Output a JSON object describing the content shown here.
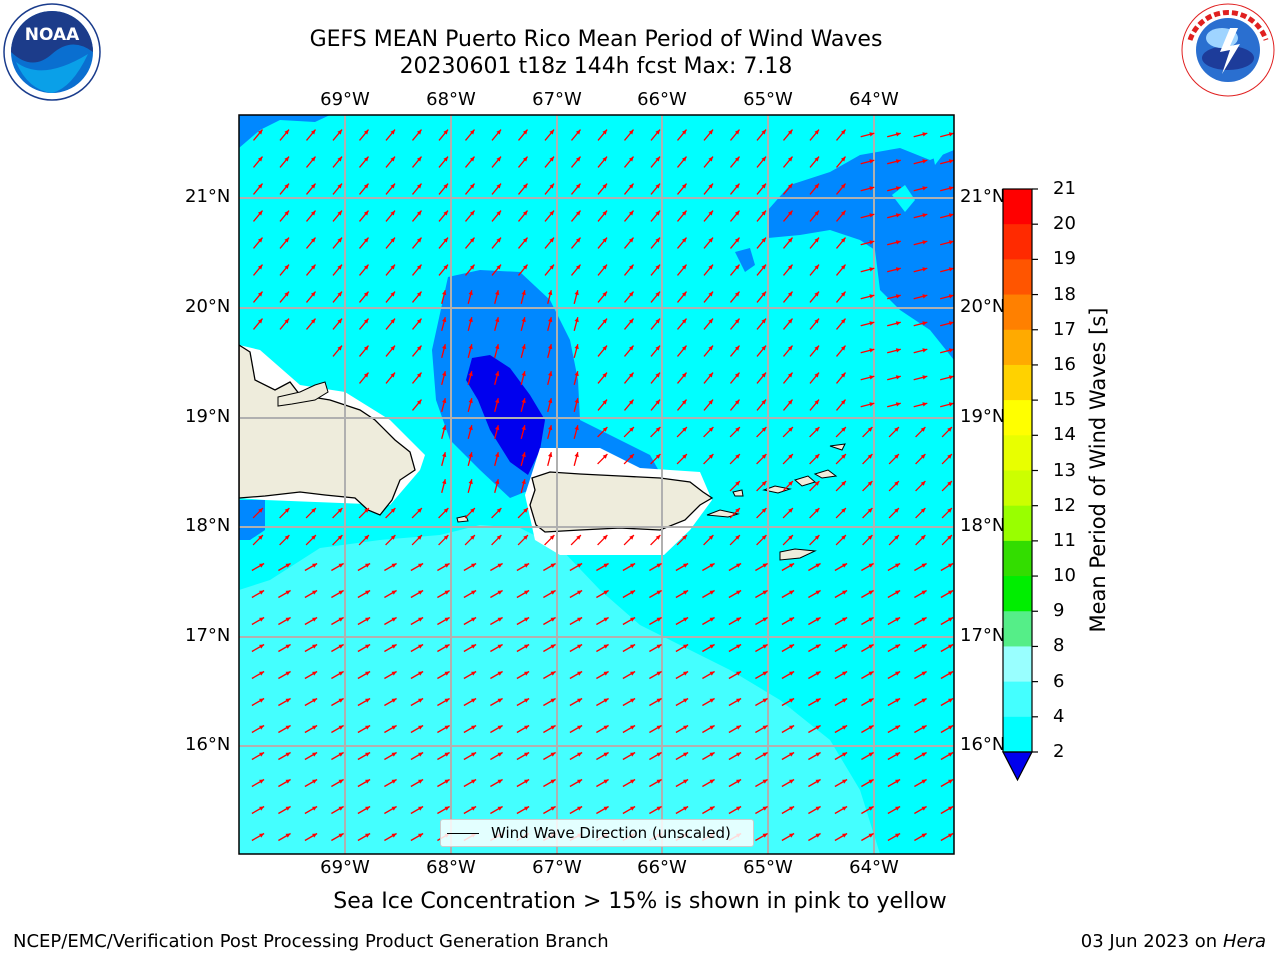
{
  "header": {
    "title_line1": "GEFS MEAN Puerto Rico Mean Period of Wind Waves",
    "title_line2": "20230601 t18z 144h fcst   Max: 7.18"
  },
  "map": {
    "lon_labels": [
      "69°W",
      "68°W",
      "67°W",
      "66°W",
      "65°W",
      "64°W"
    ],
    "lat_labels": [
      "21°N",
      "20°N",
      "19°N",
      "18°N",
      "17°N",
      "16°N"
    ],
    "legend_label": "Wind Wave Direction (unscaled)",
    "arrow_color": "#ff0000",
    "land_color": "#eeecdc"
  },
  "colorbar": {
    "title": "Mean Period of Wind Waves [s]",
    "ticks": [
      "21",
      "20",
      "19",
      "18",
      "17",
      "16",
      "15",
      "14",
      "13",
      "12",
      "11",
      "10",
      "9",
      "8",
      "6",
      "4",
      "2"
    ],
    "colors": [
      "#ff0000",
      "#ff2a00",
      "#ff5500",
      "#ff8000",
      "#ffaa00",
      "#ffd200",
      "#ffff00",
      "#e8ff00",
      "#ccff00",
      "#99ff00",
      "#33dd00",
      "#00ee00",
      "#55ee88",
      "#99ffff",
      "#44ffff",
      "#00ffff",
      "#0088ff",
      "#0000ee"
    ]
  },
  "footer": {
    "sea_ice_note": "Sea Ice Concentration > 15% is shown in pink to yellow",
    "branch": "NCEP/EMC/Verification Post Processing Product Generation Branch",
    "date_prefix": "03 Jun 2023 on",
    "host": "Hera"
  },
  "logos": {
    "noaa": {
      "text": "NOAA",
      "ring_text": "NATIONAL OCEANIC AND ATMOSPHERIC ADMINISTRATION"
    },
    "nws": {
      "ring_text": "NATIONAL WEATHER SERVICE"
    }
  }
}
